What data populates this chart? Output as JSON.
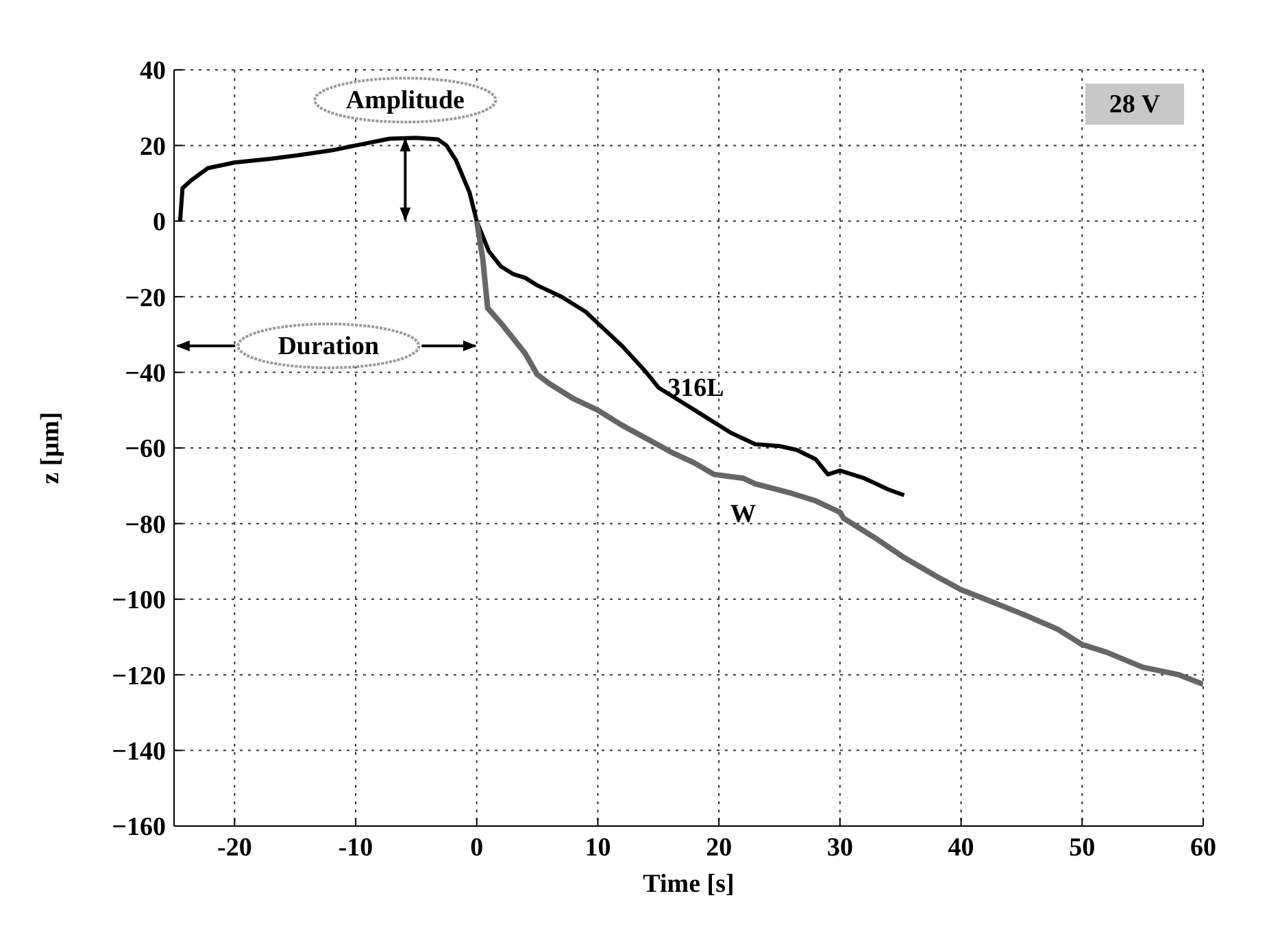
{
  "chart_data": {
    "type": "line",
    "xlabel": "Time [s]",
    "ylabel": "z [µm]",
    "xlim": [
      -25,
      60
    ],
    "xticks": [
      -20,
      -10,
      0,
      10,
      20,
      30,
      40,
      50,
      60
    ],
    "ylim": [
      -160,
      40
    ],
    "yticks": [
      -160,
      -140,
      -120,
      -100,
      -80,
      -60,
      -40,
      -20,
      0,
      20,
      40
    ],
    "grid": true,
    "legend": false,
    "marker": "none",
    "line_style": "solid",
    "series": [
      {
        "name": "316L",
        "color": "#000000",
        "x": [
          -24.5,
          -24.3,
          -23.5,
          -22.2,
          -20,
          -17,
          -14.8,
          -12,
          -10,
          -7.2,
          -5,
          -3.2,
          -2.5,
          -1.7,
          -0.6,
          0,
          1,
          2,
          3,
          4,
          5,
          7,
          9,
          10,
          12,
          14,
          15,
          17,
          19,
          21,
          23,
          25,
          26.4,
          28,
          29,
          30,
          32,
          34,
          35.3
        ],
        "values": [
          0,
          8.7,
          11,
          14,
          15.5,
          16.5,
          17.4,
          18.7,
          20,
          21.8,
          22,
          21.6,
          20,
          16,
          7.6,
          0,
          -8,
          -12,
          -14,
          -15,
          -17,
          -20,
          -24,
          -27,
          -33,
          -40,
          -44,
          -48,
          -52,
          -56,
          -59,
          -59.5,
          -60.5,
          -63,
          -67,
          -66,
          -68,
          -71,
          -72.5
        ]
      },
      {
        "name": "W",
        "color": "#666666",
        "x": [
          0,
          0.5,
          0.9,
          2,
          4,
          5,
          6,
          8,
          10,
          12,
          14.7,
          16,
          18,
          19.6,
          22,
          23,
          26,
          28,
          30,
          30.3,
          33,
          35.3,
          38,
          40,
          42,
          45.5,
          48,
          50,
          52,
          55,
          58,
          60
        ],
        "values": [
          0,
          -10,
          -23,
          -27,
          -35,
          -40.6,
          -43,
          -47,
          -50,
          -54,
          -58.7,
          -61,
          -64,
          -67,
          -68,
          -69.5,
          -72,
          -74,
          -77,
          -78.6,
          -84,
          -89,
          -94,
          -97.5,
          -100,
          -104.5,
          -108,
          -112,
          -114,
          -118,
          -120,
          -122.5
        ]
      }
    ],
    "annotations": [
      "Amplitude",
      "Duration",
      "28 V"
    ]
  }
}
